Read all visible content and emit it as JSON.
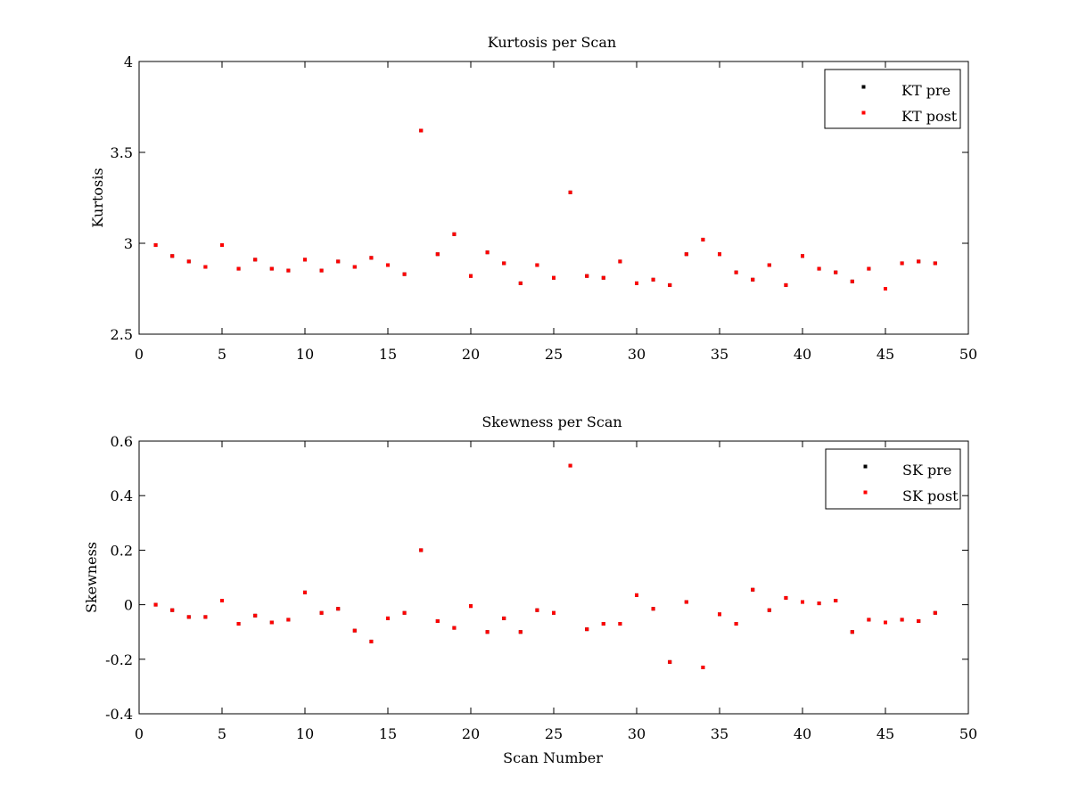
{
  "colors": {
    "pre": "#000000",
    "post": "#ff0000",
    "axis": "#000000",
    "background": "#ffffff"
  },
  "chart_data": [
    {
      "type": "scatter",
      "title": "Kurtosis per Scan",
      "xlabel": "",
      "ylabel": "Kurtosis",
      "xlim": [
        0,
        50
      ],
      "ylim": [
        2.5,
        4
      ],
      "xticks": [
        0,
        5,
        10,
        15,
        20,
        25,
        30,
        35,
        40,
        45,
        50
      ],
      "yticks": [
        2.5,
        3,
        3.5,
        4
      ],
      "xtick_labels": [
        "0",
        "5",
        "10",
        "15",
        "20",
        "25",
        "30",
        "35",
        "40",
        "45",
        "50"
      ],
      "ytick_labels": [
        "2.5",
        "3",
        "3.5",
        "4"
      ],
      "grid": false,
      "legend": "top-right",
      "series": [
        {
          "name": "KT pre",
          "color": "#000000",
          "x": [
            1,
            2,
            3,
            4,
            5,
            6,
            7,
            8,
            9,
            10,
            11,
            12,
            13,
            14,
            15,
            16,
            17,
            18,
            19,
            20,
            21,
            22,
            23,
            24,
            25,
            26,
            27,
            28,
            29,
            30,
            31,
            32,
            33,
            34,
            35,
            36,
            37,
            38,
            39,
            40,
            41,
            42,
            43,
            44,
            45,
            46,
            47,
            48
          ],
          "y": [
            2.99,
            2.93,
            2.9,
            2.87,
            2.99,
            2.86,
            2.91,
            2.86,
            2.85,
            2.91,
            2.85,
            2.9,
            2.87,
            2.92,
            2.88,
            2.83,
            3.62,
            2.94,
            3.05,
            2.82,
            2.95,
            2.89,
            2.78,
            2.88,
            2.81,
            3.28,
            2.82,
            2.81,
            2.9,
            2.78,
            2.8,
            2.77,
            2.94,
            3.02,
            2.94,
            2.84,
            2.8,
            2.88,
            2.77,
            2.93,
            2.86,
            2.84,
            2.79,
            2.86,
            2.75,
            2.89,
            2.9,
            2.89
          ]
        },
        {
          "name": "KT post",
          "color": "#ff0000",
          "x": [
            1,
            2,
            3,
            4,
            5,
            6,
            7,
            8,
            9,
            10,
            11,
            12,
            13,
            14,
            15,
            16,
            17,
            18,
            19,
            20,
            21,
            22,
            23,
            24,
            25,
            26,
            27,
            28,
            29,
            30,
            31,
            32,
            33,
            34,
            35,
            36,
            37,
            38,
            39,
            40,
            41,
            42,
            43,
            44,
            45,
            46,
            47,
            48
          ],
          "y": [
            2.99,
            2.93,
            2.9,
            2.87,
            2.99,
            2.86,
            2.91,
            2.86,
            2.85,
            2.91,
            2.85,
            2.9,
            2.87,
            2.92,
            2.88,
            2.83,
            3.62,
            2.94,
            3.05,
            2.82,
            2.95,
            2.89,
            2.78,
            2.88,
            2.81,
            3.28,
            2.82,
            2.81,
            2.9,
            2.78,
            2.8,
            2.77,
            2.94,
            3.02,
            2.94,
            2.84,
            2.8,
            2.88,
            2.77,
            2.93,
            2.86,
            2.84,
            2.79,
            2.86,
            2.75,
            2.89,
            2.9,
            2.89
          ]
        }
      ]
    },
    {
      "type": "scatter",
      "title": "Skewness per Scan",
      "xlabel": "Scan Number",
      "ylabel": "Skewness",
      "xlim": [
        0,
        50
      ],
      "ylim": [
        -0.4,
        0.6
      ],
      "xticks": [
        0,
        5,
        10,
        15,
        20,
        25,
        30,
        35,
        40,
        45,
        50
      ],
      "yticks": [
        -0.4,
        -0.2,
        0,
        0.2,
        0.4,
        0.6
      ],
      "xtick_labels": [
        "0",
        "5",
        "10",
        "15",
        "20",
        "25",
        "30",
        "35",
        "40",
        "45",
        "50"
      ],
      "ytick_labels": [
        "-0.4",
        "-0.2",
        "0",
        "0.2",
        "0.4",
        "0.6"
      ],
      "grid": false,
      "legend": "top-right",
      "series": [
        {
          "name": "SK pre",
          "color": "#000000",
          "x": [
            1,
            2,
            3,
            4,
            5,
            6,
            7,
            8,
            9,
            10,
            11,
            12,
            13,
            14,
            15,
            16,
            17,
            18,
            19,
            20,
            21,
            22,
            23,
            24,
            25,
            26,
            27,
            28,
            29,
            30,
            31,
            32,
            33,
            34,
            35,
            36,
            37,
            38,
            39,
            40,
            41,
            42,
            43,
            44,
            45,
            46,
            47,
            48
          ],
          "y": [
            0.0,
            -0.02,
            -0.045,
            -0.045,
            0.015,
            -0.07,
            -0.04,
            -0.065,
            -0.055,
            0.045,
            -0.03,
            -0.015,
            -0.095,
            -0.135,
            -0.05,
            -0.03,
            0.2,
            -0.06,
            -0.085,
            -0.005,
            -0.1,
            -0.05,
            -0.1,
            -0.02,
            -0.03,
            0.51,
            -0.09,
            -0.07,
            -0.07,
            0.035,
            -0.015,
            -0.21,
            0.01,
            -0.23,
            -0.035,
            -0.07,
            0.055,
            -0.02,
            0.025,
            0.01,
            0.005,
            0.015,
            -0.1,
            -0.055,
            -0.065,
            -0.055,
            -0.06,
            -0.03
          ]
        },
        {
          "name": "SK post",
          "color": "#ff0000",
          "x": [
            1,
            2,
            3,
            4,
            5,
            6,
            7,
            8,
            9,
            10,
            11,
            12,
            13,
            14,
            15,
            16,
            17,
            18,
            19,
            20,
            21,
            22,
            23,
            24,
            25,
            26,
            27,
            28,
            29,
            30,
            31,
            32,
            33,
            34,
            35,
            36,
            37,
            38,
            39,
            40,
            41,
            42,
            43,
            44,
            45,
            46,
            47,
            48
          ],
          "y": [
            0.0,
            -0.02,
            -0.045,
            -0.045,
            0.015,
            -0.07,
            -0.04,
            -0.065,
            -0.055,
            0.045,
            -0.03,
            -0.015,
            -0.095,
            -0.135,
            -0.05,
            -0.03,
            0.2,
            -0.06,
            -0.085,
            -0.005,
            -0.1,
            -0.05,
            -0.1,
            -0.02,
            -0.03,
            0.51,
            -0.09,
            -0.07,
            -0.07,
            0.035,
            -0.015,
            -0.21,
            0.01,
            -0.23,
            -0.035,
            -0.07,
            0.055,
            -0.02,
            0.025,
            0.01,
            0.005,
            0.015,
            -0.1,
            -0.055,
            -0.065,
            -0.055,
            -0.06,
            -0.03
          ]
        }
      ]
    }
  ]
}
